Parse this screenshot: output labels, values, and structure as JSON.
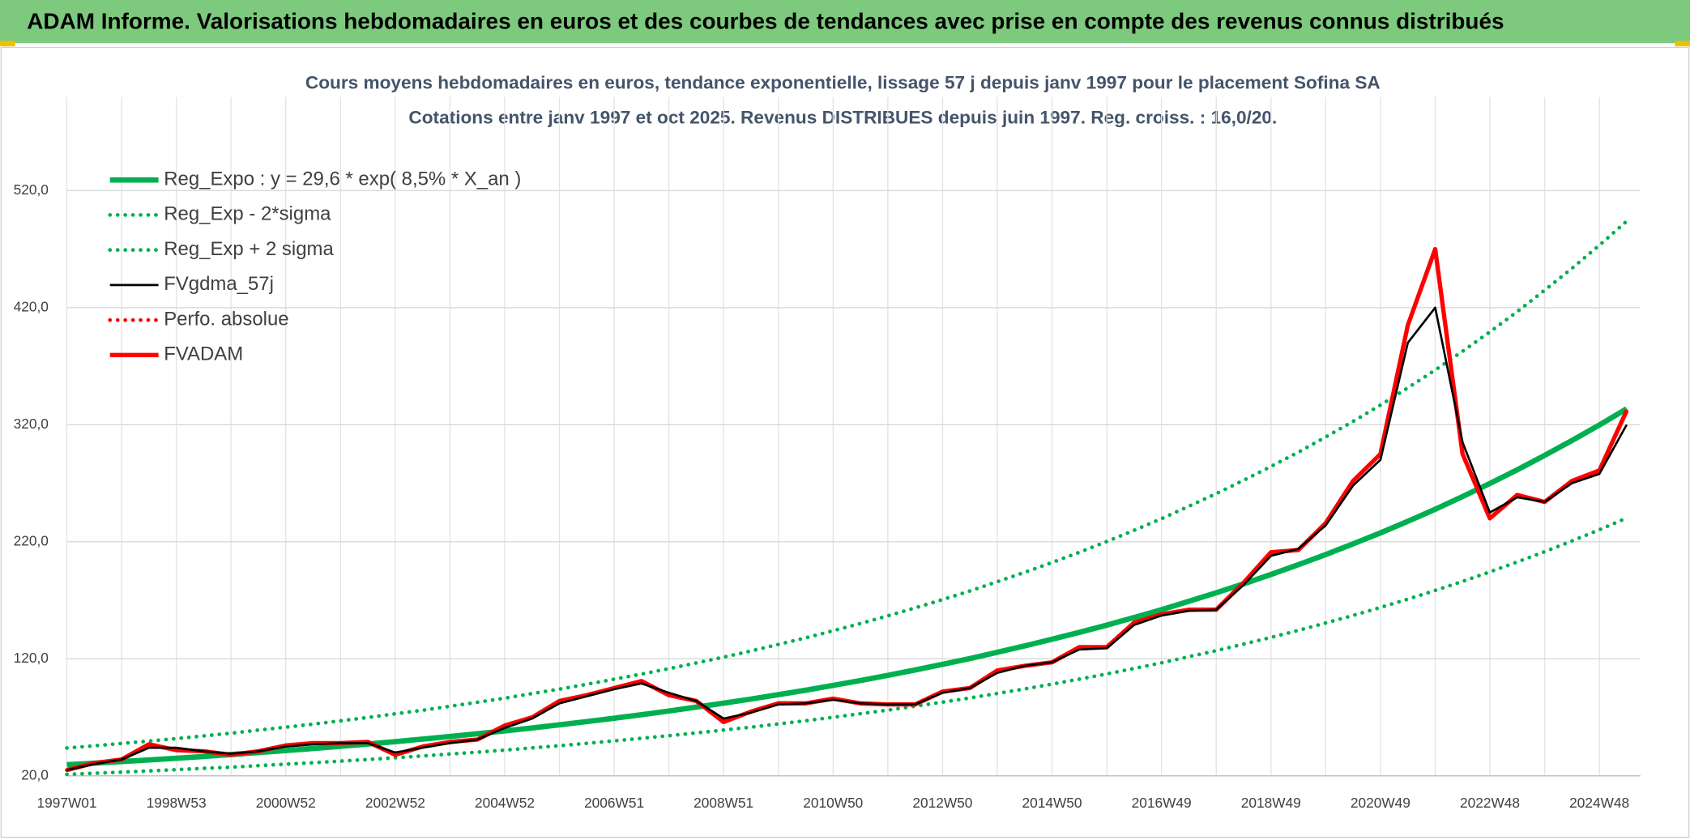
{
  "header": {
    "title": "ADAM Informe. Valorisations hebdomadaires en euros et des courbes de tendances avec prise en compte des revenus connus distribués"
  },
  "chart_data": {
    "type": "line",
    "title": "Cours moyens hebdomadaires en euros, tendance exponentielle, lissage 57 j depuis janv 1997 pour le placement Sofina SA",
    "subtitle": "Cotations entre janv 1997 et oct 2025. Revenus DISTRIBUES depuis juin 1997. Reg. croiss. : 16,0/20.",
    "categories": [
      "1997W01",
      null,
      null,
      null,
      "1998W53",
      null,
      null,
      null,
      "2000W52",
      null,
      null,
      null,
      "2002W52",
      null,
      null,
      null,
      "2004W52",
      null,
      null,
      null,
      "2006W51",
      null,
      null,
      null,
      "2008W51",
      null,
      null,
      null,
      "2010W50",
      null,
      null,
      null,
      "2012W50",
      null,
      null,
      null,
      "2014W50",
      null,
      null,
      null,
      "2016W49",
      null,
      null,
      null,
      "2018W49",
      null,
      null,
      null,
      "2020W49",
      null,
      null,
      null,
      "2022W48",
      null,
      null,
      null,
      "2024W48",
      null
    ],
    "ylim": [
      20,
      600
    ],
    "yticks": [
      {
        "value": 20,
        "label": "20,0"
      },
      {
        "value": 120,
        "label": "120,0"
      },
      {
        "value": 220,
        "label": "220,0"
      },
      {
        "value": 320,
        "label": "320,0"
      },
      {
        "value": 420,
        "label": "420,0"
      },
      {
        "value": 520,
        "label": "520,0"
      }
    ],
    "grid": true,
    "legend": "upper left",
    "series": [
      {
        "name": "Reg_Expo : y = 29,6 * exp( 8,5% *  X_an )",
        "color": "#00b050",
        "style": "solid",
        "values": [
          29.6,
          30.9,
          32.2,
          33.6,
          35.1,
          36.6,
          38.2,
          39.9,
          41.6,
          43.4,
          45.3,
          47.2,
          49.3,
          51.4,
          53.7,
          56.0,
          58.4,
          61.0,
          63.6,
          66.4,
          69.3,
          72.3,
          75.4,
          78.7,
          82.1,
          85.6,
          89.4,
          93.2,
          97.3,
          101.5,
          105.9,
          110.5,
          115.3,
          120.3,
          125.6,
          131.0,
          136.7,
          142.6,
          148.8,
          155.3,
          162.0,
          169.1,
          176.4,
          184.1,
          192.1,
          200.4,
          209.1,
          218.2,
          227.6,
          237.5,
          247.8,
          258.6,
          269.8,
          281.5,
          293.8,
          306.5,
          319.8,
          333.7
        ]
      },
      {
        "name": "Reg_Exp - 2*sigma",
        "color": "#00b050",
        "style": "dotted",
        "values": [
          21.3,
          22.2,
          23.2,
          24.2,
          25.3,
          26.4,
          27.5,
          28.7,
          30.0,
          31.2,
          32.6,
          34.0,
          35.5,
          37.0,
          38.7,
          40.3,
          42.0,
          43.9,
          45.8,
          47.8,
          49.9,
          52.1,
          54.3,
          56.7,
          59.1,
          61.6,
          64.4,
          67.1,
          70.1,
          73.1,
          76.2,
          79.6,
          83.0,
          86.6,
          90.4,
          94.3,
          98.4,
          102.7,
          107.1,
          111.8,
          116.6,
          121.8,
          127.0,
          132.6,
          138.3,
          144.3,
          150.6,
          157.1,
          163.9,
          171.0,
          178.4,
          186.2,
          194.3,
          202.7,
          211.5,
          220.7,
          230.3,
          240.3
        ]
      },
      {
        "name": "Reg_Exp + 2 sigma",
        "color": "#00b050",
        "style": "dotted",
        "values": [
          43.8,
          45.7,
          47.7,
          49.7,
          51.9,
          54.2,
          56.5,
          59.1,
          61.6,
          64.2,
          67.0,
          69.9,
          73.0,
          76.1,
          79.5,
          82.9,
          86.4,
          90.3,
          94.1,
          98.3,
          102.6,
          107.0,
          111.6,
          116.5,
          121.5,
          126.7,
          132.3,
          137.9,
          144.0,
          150.2,
          156.7,
          163.5,
          170.6,
          178.0,
          185.9,
          193.9,
          202.3,
          211.0,
          220.2,
          229.8,
          239.8,
          250.3,
          261.1,
          272.5,
          284.3,
          296.6,
          309.5,
          322.9,
          336.8,
          351.5,
          366.7,
          382.7,
          399.3,
          416.6,
          434.8,
          453.6,
          473.3,
          493.9
        ]
      },
      {
        "name": "FVgdma_57j",
        "color": "#000000",
        "style": "thin",
        "values": [
          25,
          30,
          34,
          44,
          44,
          41,
          39,
          41,
          45,
          47,
          48,
          48,
          40,
          44,
          48,
          51,
          61,
          69,
          82,
          88,
          94,
          99,
          91,
          84,
          69,
          74,
          81,
          82,
          85,
          82,
          81,
          81,
          91,
          95,
          108,
          114,
          117,
          128,
          129,
          149,
          157,
          161,
          162,
          183,
          208,
          214,
          234,
          268,
          290,
          390,
          420,
          305,
          245,
          258,
          254,
          270,
          278,
          320
        ]
      },
      {
        "name": "Perfo. absolue",
        "color": "#ff0000",
        "style": "dotted",
        "values": [
          25,
          31,
          34,
          47,
          42,
          41,
          38,
          41,
          46,
          48,
          48,
          49,
          38,
          45,
          49,
          51,
          63,
          70,
          84,
          89,
          95,
          101,
          89,
          84,
          66,
          75,
          82,
          82,
          86,
          82,
          81,
          81,
          92,
          95,
          110,
          114,
          117,
          130,
          130,
          151,
          158,
          162,
          162,
          185,
          211,
          213,
          236,
          272,
          295,
          405,
          470,
          295,
          240,
          260,
          254,
          272,
          281,
          332
        ]
      },
      {
        "name": "FVADAM",
        "color": "#ff0000",
        "style": "solid",
        "values": [
          25,
          31,
          34,
          47,
          42,
          41,
          38,
          41,
          46,
          48,
          48,
          49,
          38,
          45,
          49,
          51,
          63,
          70,
          84,
          89,
          95,
          101,
          89,
          84,
          66,
          75,
          82,
          82,
          86,
          82,
          81,
          81,
          92,
          95,
          110,
          114,
          117,
          130,
          130,
          151,
          158,
          162,
          162,
          185,
          211,
          213,
          236,
          272,
          295,
          405,
          470,
          295,
          240,
          260,
          254,
          272,
          281,
          332
        ]
      }
    ]
  }
}
